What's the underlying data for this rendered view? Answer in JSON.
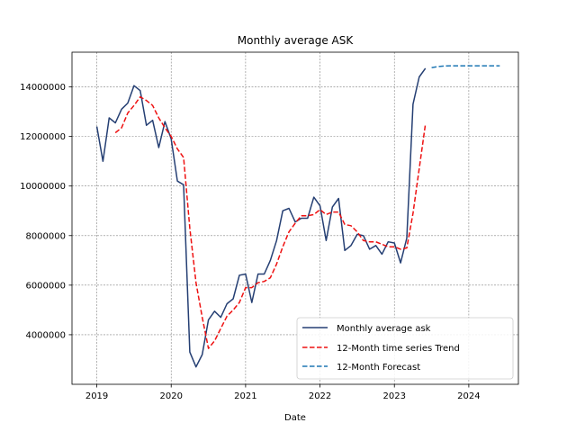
{
  "chart_data": {
    "type": "line",
    "title": "Monthly average ASK",
    "xlabel": "Date",
    "ylabel": "",
    "xlim": [
      "2018-09",
      "2024-09"
    ],
    "ylim": [
      2000000,
      15400000
    ],
    "x_ticks": [
      "2019",
      "2020",
      "2021",
      "2022",
      "2023",
      "2024"
    ],
    "y_ticks": [
      4000000,
      6000000,
      8000000,
      10000000,
      12000000,
      14000000
    ],
    "y_tick_labels": [
      "4000000",
      "6000000",
      "8000000",
      "10000000",
      "12000000",
      "14000000"
    ],
    "grid": true,
    "legend_position": "lower-right",
    "series": [
      {
        "name": "Monthly average ask",
        "color": "#253f73",
        "style": "solid",
        "x": [
          "2019-01",
          "2019-02",
          "2019-03",
          "2019-04",
          "2019-05",
          "2019-06",
          "2019-07",
          "2019-08",
          "2019-09",
          "2019-10",
          "2019-11",
          "2019-12",
          "2020-01",
          "2020-02",
          "2020-03",
          "2020-04",
          "2020-05",
          "2020-06",
          "2020-07",
          "2020-08",
          "2020-09",
          "2020-10",
          "2020-11",
          "2020-12",
          "2021-01",
          "2021-02",
          "2021-03",
          "2021-04",
          "2021-05",
          "2021-06",
          "2021-07",
          "2021-08",
          "2021-09",
          "2021-10",
          "2021-11",
          "2021-12",
          "2022-01",
          "2022-02",
          "2022-03",
          "2022-04",
          "2022-05",
          "2022-06",
          "2022-07",
          "2022-08",
          "2022-09",
          "2022-10",
          "2022-11",
          "2022-12",
          "2023-01",
          "2023-02",
          "2023-03",
          "2023-04",
          "2023-05",
          "2023-06"
        ],
        "y": [
          12400000,
          11000000,
          12750000,
          12550000,
          13100000,
          13350000,
          14050000,
          13850000,
          12450000,
          12650000,
          11550000,
          12600000,
          11900000,
          10200000,
          10050000,
          3300000,
          2700000,
          3200000,
          4600000,
          4950000,
          4700000,
          5250000,
          5450000,
          6400000,
          6450000,
          5300000,
          6450000,
          6450000,
          7000000,
          7800000,
          9000000,
          9100000,
          8550000,
          8700000,
          8700000,
          9550000,
          9200000,
          7800000,
          9150000,
          9500000,
          7400000,
          7600000,
          8050000,
          8000000,
          7450000,
          7600000,
          7250000,
          7750000,
          7700000,
          6900000,
          7900000,
          13300000,
          14400000,
          14750000
        ]
      },
      {
        "name": "12-Month time series Trend",
        "color": "#ee1111",
        "style": "dashed",
        "x": [
          "2019-04",
          "2019-05",
          "2019-06",
          "2019-07",
          "2019-08",
          "2019-09",
          "2019-10",
          "2019-11",
          "2019-12",
          "2020-01",
          "2020-02",
          "2020-03",
          "2020-04",
          "2020-05",
          "2020-06",
          "2020-07",
          "2020-08",
          "2020-09",
          "2020-10",
          "2020-11",
          "2020-12",
          "2021-01",
          "2021-02",
          "2021-03",
          "2021-04",
          "2021-05",
          "2021-06",
          "2021-07",
          "2021-08",
          "2021-09",
          "2021-10",
          "2021-11",
          "2021-12",
          "2022-01",
          "2022-02",
          "2022-03",
          "2022-04",
          "2022-05",
          "2022-06",
          "2022-07",
          "2022-08",
          "2022-09",
          "2022-10",
          "2022-11",
          "2022-12",
          "2023-01",
          "2023-02",
          "2023-03",
          "2023-04",
          "2023-05",
          "2023-06"
        ],
        "y": [
          12150000,
          12350000,
          12950000,
          13250000,
          13600000,
          13450000,
          13250000,
          12750000,
          12350000,
          12000000,
          11500000,
          11150000,
          8300000,
          6100000,
          4700000,
          3450000,
          3750000,
          4250000,
          4750000,
          5000000,
          5300000,
          5900000,
          5900000,
          6100000,
          6150000,
          6300000,
          6850000,
          7550000,
          8150000,
          8500000,
          8800000,
          8800000,
          8850000,
          9050000,
          8850000,
          8950000,
          8950000,
          8450000,
          8400000,
          8150000,
          7800000,
          7750000,
          7750000,
          7650000,
          7550000,
          7550000,
          7450000,
          7500000,
          8900000,
          10700000,
          12500000
        ]
      },
      {
        "name": "12-Month Forecast",
        "color": "#1f77b4",
        "style": "dashed",
        "x": [
          "2023-07",
          "2023-08",
          "2023-09",
          "2023-10",
          "2023-11",
          "2023-12",
          "2024-01",
          "2024-02",
          "2024-03",
          "2024-04",
          "2024-05",
          "2024-06"
        ],
        "y": [
          14780000,
          14820000,
          14840000,
          14850000,
          14850000,
          14850000,
          14850000,
          14850000,
          14850000,
          14850000,
          14850000,
          14850000
        ]
      }
    ]
  }
}
